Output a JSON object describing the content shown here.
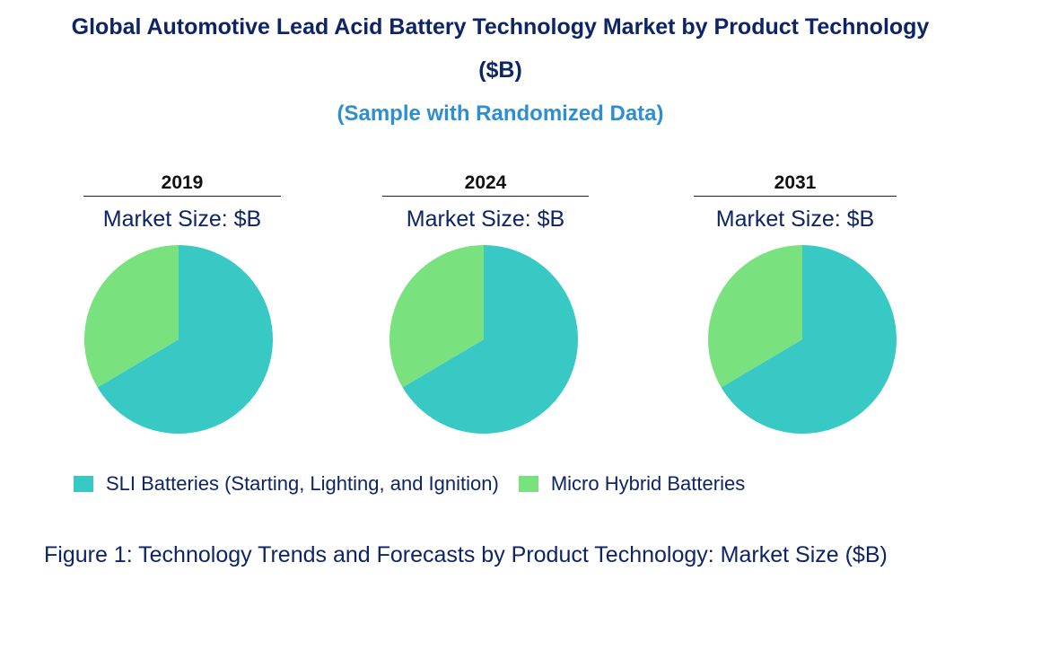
{
  "title": {
    "line1": "Global Automotive Lead Acid Battery Technology Market by Product Technology",
    "line2": "($B)",
    "subtitle": "(Sample with Randomized Data)"
  },
  "colors": {
    "title": "#0d2466",
    "subtitle": "#2e8fd0",
    "sli": "#38c9c5",
    "micro_hybrid": "#7ae17f"
  },
  "chart_data": [
    {
      "type": "pie",
      "title": "2019",
      "subtitle": "Market Size: $B",
      "slices": [
        {
          "label": "SLI Batteries (Starting, Lighting, and Ignition)",
          "value": 66.5
        },
        {
          "label": "Micro Hybrid Batteries",
          "value": 33.5
        }
      ]
    },
    {
      "type": "pie",
      "title": "2024",
      "subtitle": "Market Size: $B",
      "slices": [
        {
          "label": "SLI Batteries (Starting, Lighting, and Ignition)",
          "value": 66.5
        },
        {
          "label": "Micro Hybrid Batteries",
          "value": 33.5
        }
      ]
    },
    {
      "type": "pie",
      "title": "2031",
      "subtitle": "Market Size: $B",
      "slices": [
        {
          "label": "SLI Batteries (Starting, Lighting, and Ignition)",
          "value": 66.5
        },
        {
          "label": "Micro Hybrid Batteries",
          "value": 33.5
        }
      ]
    }
  ],
  "legend": [
    {
      "label": "SLI Batteries (Starting, Lighting, and Ignition)",
      "color": "#38c9c5"
    },
    {
      "label": "Micro Hybrid Batteries",
      "color": "#7ae17f"
    }
  ],
  "caption": "Figure 1: Technology Trends and Forecasts by Product Technology: Market Size ($B)"
}
